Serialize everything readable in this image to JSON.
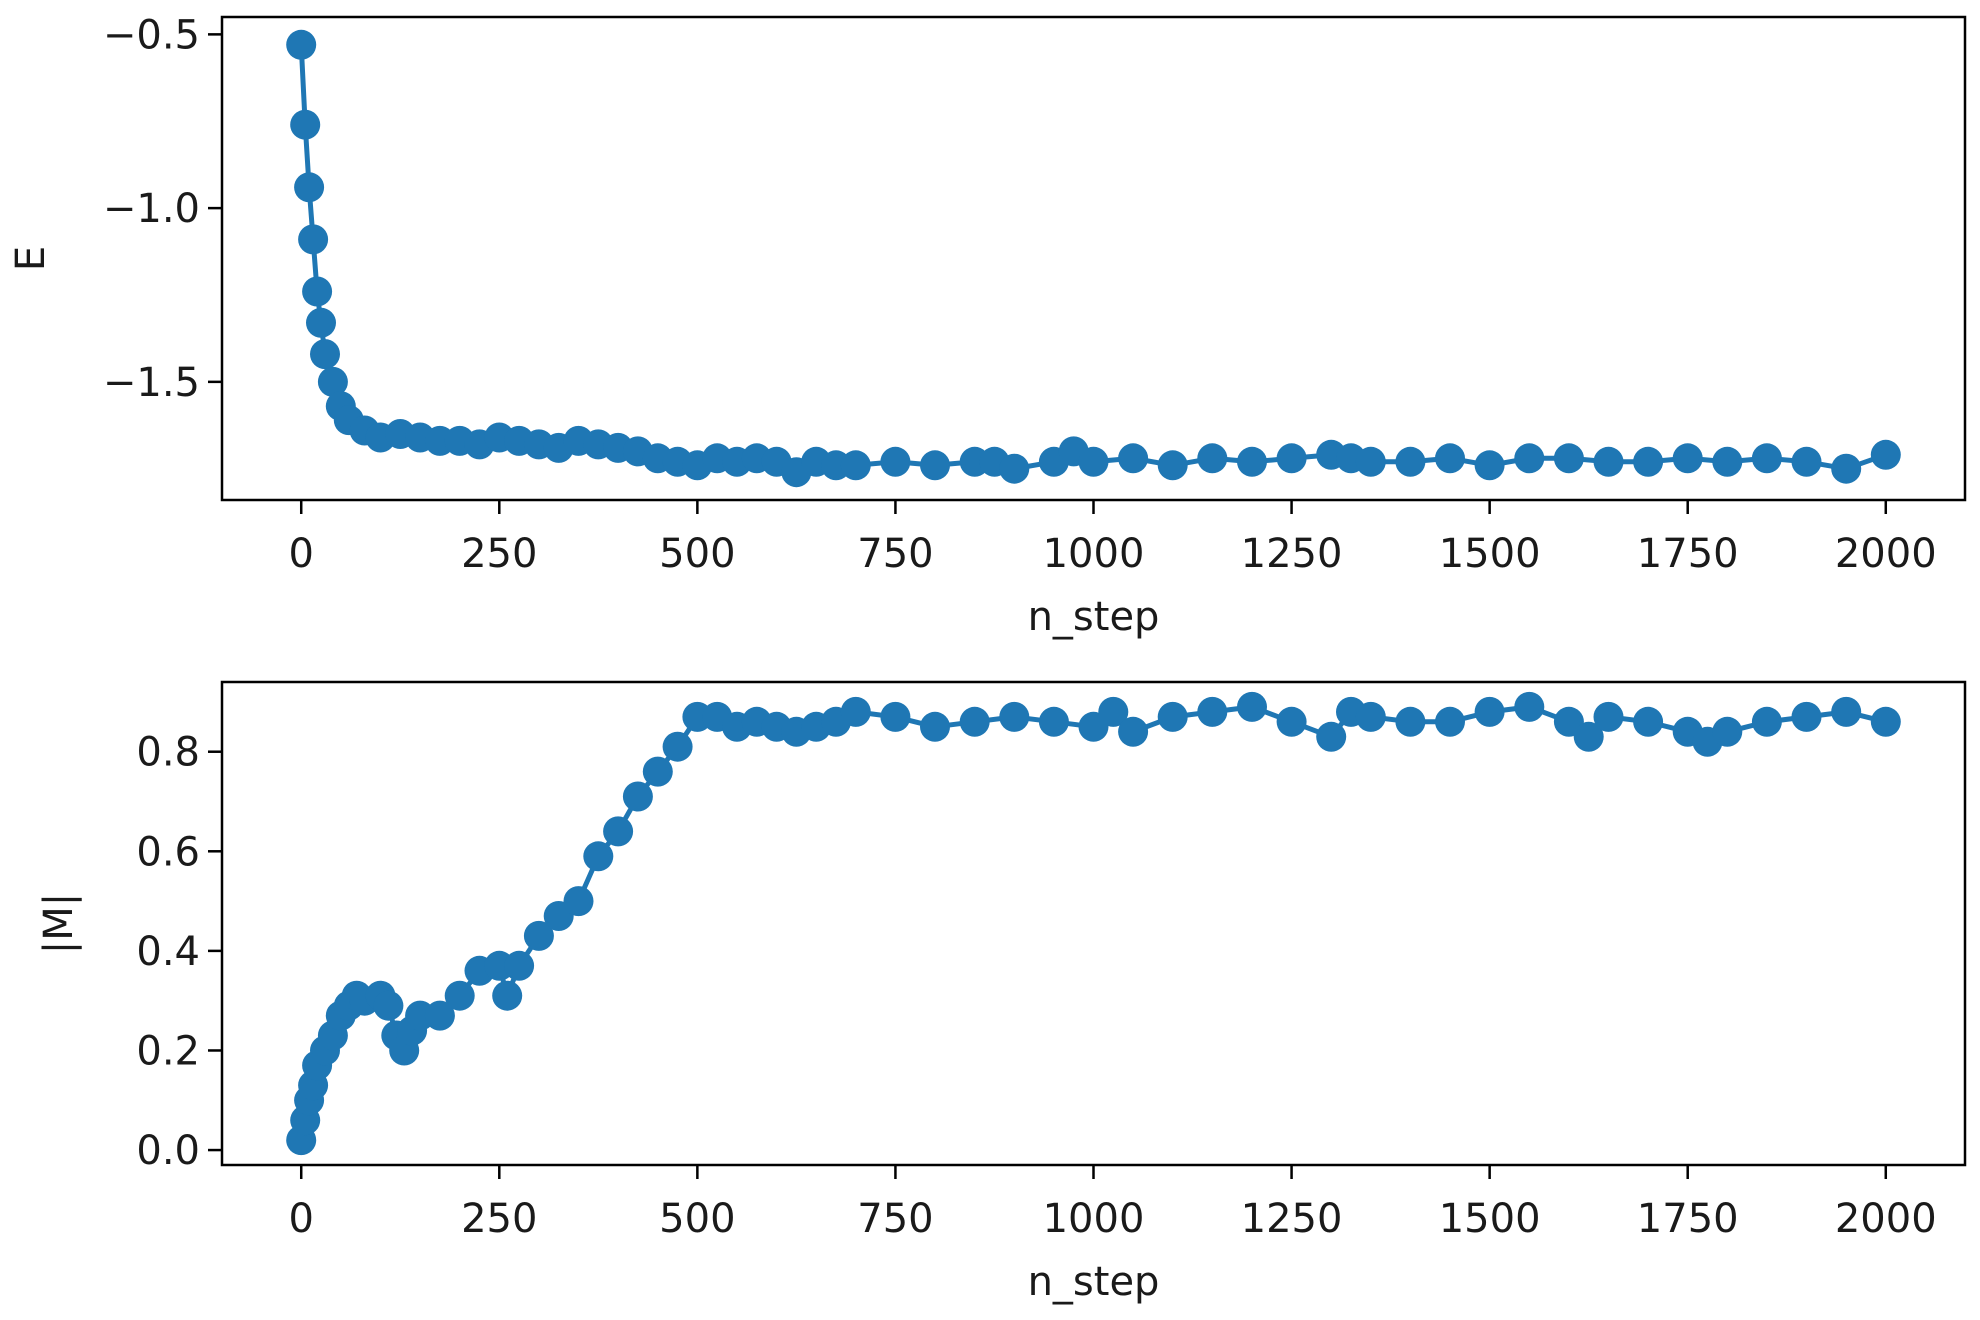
{
  "chart_data": [
    {
      "type": "line",
      "marker": "circle",
      "xlabel": "n_step",
      "ylabel": "E",
      "xlim": [
        -100,
        2100
      ],
      "ylim": [
        -1.84,
        -0.45
      ],
      "xticks": [
        0,
        250,
        500,
        750,
        1000,
        1250,
        1500,
        1750,
        2000
      ],
      "xtick_labels": [
        "0",
        "250",
        "500",
        "750",
        "1000",
        "1250",
        "1500",
        "1750",
        "2000"
      ],
      "yticks": [
        -0.5,
        -1.0,
        -1.5
      ],
      "ytick_labels": [
        "−0.5",
        "−1.0",
        "−1.5"
      ],
      "color": "#1f77b4",
      "grid": false,
      "series": [
        {
          "x": [
            0,
            5,
            10,
            15,
            20,
            25,
            30,
            40,
            50,
            60,
            80,
            100,
            125,
            150,
            175,
            200,
            225,
            250,
            275,
            300,
            325,
            350,
            375,
            400,
            425,
            450,
            475,
            500,
            525,
            550,
            575,
            600,
            625,
            650,
            675,
            700,
            750,
            800,
            850,
            875,
            900,
            950,
            975,
            1000,
            1050,
            1100,
            1150,
            1200,
            1250,
            1300,
            1325,
            1350,
            1400,
            1450,
            1500,
            1550,
            1600,
            1650,
            1700,
            1750,
            1800,
            1850,
            1900,
            1950,
            2000
          ],
          "y": [
            -0.53,
            -0.76,
            -0.94,
            -1.09,
            -1.24,
            -1.33,
            -1.42,
            -1.5,
            -1.57,
            -1.61,
            -1.64,
            -1.66,
            -1.65,
            -1.66,
            -1.67,
            -1.67,
            -1.68,
            -1.66,
            -1.67,
            -1.68,
            -1.69,
            -1.67,
            -1.68,
            -1.69,
            -1.7,
            -1.72,
            -1.73,
            -1.74,
            -1.72,
            -1.73,
            -1.72,
            -1.73,
            -1.76,
            -1.73,
            -1.74,
            -1.74,
            -1.73,
            -1.74,
            -1.73,
            -1.73,
            -1.75,
            -1.73,
            -1.7,
            -1.73,
            -1.72,
            -1.74,
            -1.72,
            -1.73,
            -1.72,
            -1.71,
            -1.72,
            -1.73,
            -1.73,
            -1.72,
            -1.74,
            -1.72,
            -1.72,
            -1.73,
            -1.73,
            -1.72,
            -1.73,
            -1.72,
            -1.73,
            -1.75,
            -1.71
          ]
        }
      ]
    },
    {
      "type": "line",
      "marker": "circle",
      "xlabel": "n_step",
      "ylabel": "|M|",
      "xlim": [
        -100,
        2100
      ],
      "ylim": [
        -0.03,
        0.94
      ],
      "xticks": [
        0,
        250,
        500,
        750,
        1000,
        1250,
        1500,
        1750,
        2000
      ],
      "xtick_labels": [
        "0",
        "250",
        "500",
        "750",
        "1000",
        "1250",
        "1500",
        "1750",
        "2000"
      ],
      "yticks": [
        0.0,
        0.2,
        0.4,
        0.6,
        0.8
      ],
      "ytick_labels": [
        "0.0",
        "0.2",
        "0.4",
        "0.6",
        "0.8"
      ],
      "color": "#1f77b4",
      "grid": false,
      "series": [
        {
          "x": [
            0,
            5,
            10,
            15,
            20,
            30,
            40,
            50,
            60,
            70,
            80,
            100,
            110,
            120,
            130,
            140,
            150,
            175,
            200,
            225,
            250,
            260,
            275,
            300,
            325,
            350,
            375,
            400,
            425,
            450,
            475,
            500,
            525,
            550,
            575,
            600,
            625,
            650,
            675,
            700,
            750,
            800,
            850,
            900,
            950,
            1000,
            1025,
            1050,
            1100,
            1150,
            1200,
            1250,
            1300,
            1325,
            1350,
            1400,
            1450,
            1500,
            1550,
            1600,
            1625,
            1650,
            1700,
            1750,
            1775,
            1800,
            1850,
            1900,
            1950,
            2000
          ],
          "y": [
            0.02,
            0.06,
            0.1,
            0.13,
            0.17,
            0.2,
            0.23,
            0.27,
            0.29,
            0.31,
            0.3,
            0.31,
            0.29,
            0.23,
            0.2,
            0.24,
            0.27,
            0.27,
            0.31,
            0.36,
            0.37,
            0.31,
            0.37,
            0.43,
            0.47,
            0.5,
            0.59,
            0.64,
            0.71,
            0.76,
            0.81,
            0.87,
            0.87,
            0.85,
            0.86,
            0.85,
            0.84,
            0.85,
            0.86,
            0.88,
            0.87,
            0.85,
            0.86,
            0.87,
            0.86,
            0.85,
            0.88,
            0.84,
            0.87,
            0.88,
            0.89,
            0.86,
            0.83,
            0.88,
            0.87,
            0.86,
            0.86,
            0.88,
            0.89,
            0.86,
            0.83,
            0.87,
            0.86,
            0.84,
            0.82,
            0.84,
            0.86,
            0.87,
            0.88,
            0.86
          ]
        }
      ]
    }
  ]
}
